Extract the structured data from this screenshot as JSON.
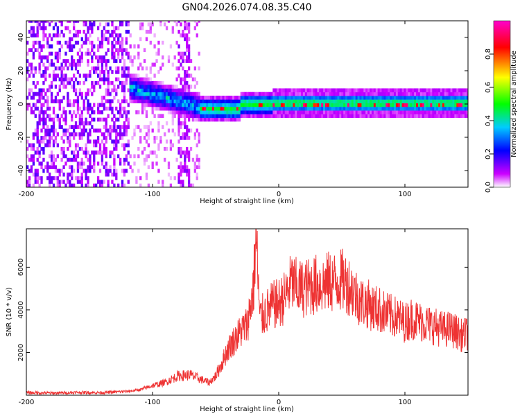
{
  "figure": {
    "title": "GN04.2026.074.08.35.C40"
  },
  "chart_data": [
    {
      "type": "heatmap",
      "xlabel": "Height of straight line (km)",
      "ylabel": "Frequency (Hz)",
      "xlim": [
        -200,
        150
      ],
      "ylim": [
        -50,
        50
      ],
      "xticks": [
        -200,
        -100,
        0,
        100
      ],
      "yticks": [
        -40,
        -20,
        0,
        20,
        40
      ],
      "colorbar": {
        "label": "Normalized spectral amplitude",
        "range": [
          0,
          1
        ],
        "ticks": [
          0.0,
          0.2,
          0.4,
          0.6,
          0.8
        ],
        "tick_labels": [
          "0.0",
          "0.2",
          "0.4",
          "0.6",
          "0.8"
        ],
        "colormap": [
          "#ffffff",
          "#cc00ff",
          "#0000ff",
          "#00ccff",
          "#00ff00",
          "#ffff00",
          "#ff0000",
          "#ff00cc"
        ]
      },
      "regions": [
        {
          "x_range": [
            -200,
            -118
          ],
          "freq_range": [
            -50,
            50
          ],
          "amplitude": 0.1,
          "pattern": "noise"
        },
        {
          "x_range": [
            -118,
            -62
          ],
          "freq_range": [
            -50,
            50
          ],
          "amplitude": 0.05,
          "pattern": "sparse noise"
        },
        {
          "x_range": [
            -118,
            -62
          ],
          "freq_center": [
            10,
            -5
          ],
          "amplitude": 0.35,
          "pattern": "band"
        },
        {
          "x_range": [
            -62,
            150
          ],
          "freq_center": 0,
          "band_halfwidth": 4,
          "amplitude": 0.5,
          "pattern": "band"
        }
      ]
    },
    {
      "type": "line",
      "xlabel": "Height of straight line (km)",
      "ylabel": "SNR (10 * v/v)",
      "xlim": [
        -200,
        150
      ],
      "ylim": [
        0,
        7800
      ],
      "xticks": [
        -200,
        -100,
        0,
        100
      ],
      "yticks": [
        2000,
        4000,
        6000
      ],
      "color": "#ee3333",
      "series": [
        {
          "x": [
            -200,
            -180,
            -160,
            -140,
            -120,
            -110,
            -100,
            -90,
            -80,
            -70,
            -60,
            -55,
            -50,
            -45,
            -40,
            -35,
            -30,
            -25,
            -20,
            -18,
            -15,
            -10,
            -5,
            0,
            5,
            10,
            15,
            20,
            25,
            30,
            35,
            40,
            45,
            50,
            55,
            60,
            65,
            70,
            75,
            80,
            85,
            90,
            95,
            100,
            105,
            110,
            115,
            120,
            125,
            130,
            135,
            140,
            145,
            150
          ],
          "y": [
            120,
            100,
            130,
            120,
            180,
            250,
            450,
            600,
            900,
            950,
            700,
            600,
            900,
            1500,
            2200,
            2600,
            3000,
            3300,
            5000,
            7600,
            3600,
            3900,
            4200,
            4300,
            4600,
            5300,
            5000,
            5000,
            5100,
            5200,
            5200,
            5300,
            5300,
            5400,
            5200,
            4800,
            4400,
            4300,
            4100,
            4000,
            3800,
            3700,
            3600,
            3400,
            3600,
            3500,
            3400,
            3300,
            3200,
            3100,
            3100,
            3000,
            2800,
            2900
          ]
        }
      ]
    }
  ]
}
